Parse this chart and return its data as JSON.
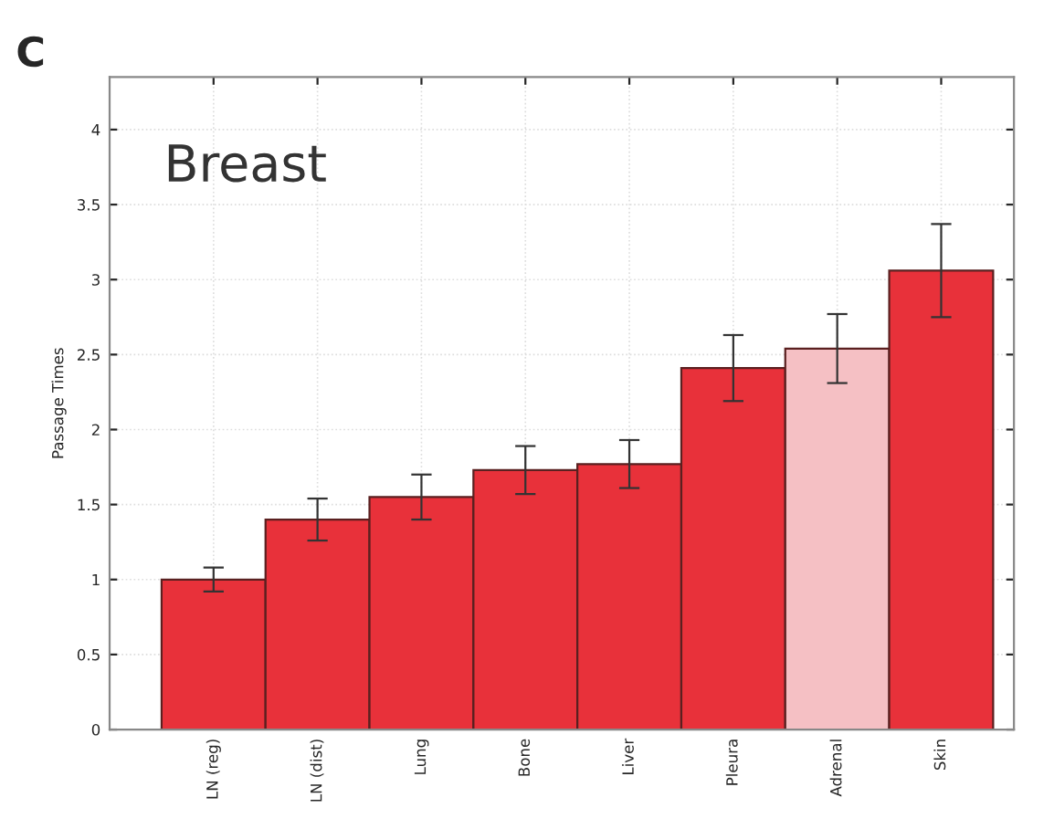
{
  "chart_data": {
    "type": "bar",
    "title": "Breast",
    "ylabel": "Passage Times",
    "annotations": [
      "C"
    ],
    "categories": [
      "LN (reg)",
      "LN (dist)",
      "Lung",
      "Bone",
      "Liver",
      "Pleura",
      "Adrenal",
      "Skin"
    ],
    "values": [
      1.0,
      1.4,
      1.55,
      1.73,
      1.77,
      2.41,
      2.54,
      3.06
    ],
    "errors": [
      0.08,
      0.14,
      0.15,
      0.16,
      0.16,
      0.22,
      0.23,
      0.31
    ],
    "colors": [
      "#e8313a",
      "#e8313a",
      "#e8313a",
      "#e8313a",
      "#e8313a",
      "#e8313a",
      "#f5c0c4",
      "#e8313a"
    ],
    "ylim": [
      0,
      4.35
    ],
    "yticks": [
      0,
      0.5,
      1,
      1.5,
      2,
      2.5,
      3,
      3.5,
      4
    ],
    "grid": true
  }
}
